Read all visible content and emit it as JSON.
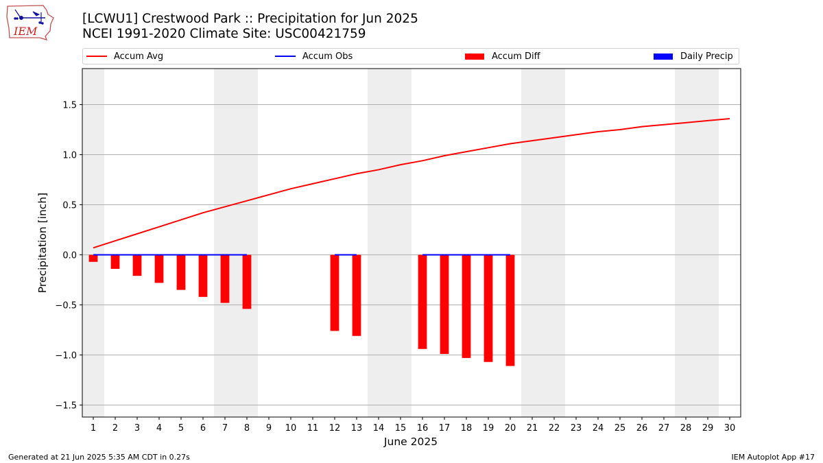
{
  "title_line1": "[LCWU1] Crestwood Park :: Precipitation for Jun 2025",
  "title_line2": "NCEI 1991-2020 Climate Site: USC00421759",
  "logo_text": "IEM",
  "footer_left": "Generated at 21 Jun 2025 5:35 AM CDT in 0.27s",
  "footer_right": "IEM Autoplot App #17",
  "colors": {
    "accum_avg": "#ff0000",
    "accum_obs": "#0000ff",
    "accum_diff": "#ff0000",
    "daily_precip": "#0000ff",
    "weekend_shade": "#eeeeee",
    "grid": "#b0b0b0"
  },
  "legend": [
    {
      "label": "Accum Avg",
      "kind": "line",
      "color": "#ff0000"
    },
    {
      "label": "Accum Obs",
      "kind": "line",
      "color": "#0000ff"
    },
    {
      "label": "Accum Diff",
      "kind": "patch",
      "color": "#ff0000"
    },
    {
      "label": "Daily Precip",
      "kind": "patch",
      "color": "#0000ff"
    }
  ],
  "chart_data": {
    "type": "bar",
    "xlabel": "June 2025",
    "ylabel": "Precipitation [inch]",
    "xlim": [
      0.5,
      30.5
    ],
    "ylim": [
      -1.62,
      1.86
    ],
    "yticks": [
      -1.5,
      -1.0,
      -0.5,
      0.0,
      0.5,
      1.0,
      1.5
    ],
    "ytick_labels": [
      "−1.5",
      "−1.0",
      "−0.5",
      "0.0",
      "0.5",
      "1.0",
      "1.5"
    ],
    "xticks": [
      1,
      2,
      3,
      4,
      5,
      6,
      7,
      8,
      9,
      10,
      11,
      12,
      13,
      14,
      15,
      16,
      17,
      18,
      19,
      20,
      21,
      22,
      23,
      24,
      25,
      26,
      27,
      28,
      29,
      30
    ],
    "grid": "horizontal",
    "weekend_days": [
      1,
      7,
      8,
      14,
      15,
      21,
      22,
      28,
      29
    ],
    "series": [
      {
        "name": "Accum Avg",
        "type": "line",
        "x": [
          1,
          2,
          3,
          4,
          5,
          6,
          7,
          8,
          9,
          10,
          11,
          12,
          13,
          14,
          15,
          16,
          17,
          18,
          19,
          20,
          21,
          22,
          23,
          24,
          25,
          26,
          27,
          28,
          29,
          30
        ],
        "values": [
          0.07,
          0.14,
          0.21,
          0.28,
          0.35,
          0.42,
          0.48,
          0.54,
          0.6,
          0.66,
          0.71,
          0.76,
          0.81,
          0.85,
          0.9,
          0.94,
          0.99,
          1.03,
          1.07,
          1.11,
          1.14,
          1.17,
          1.2,
          1.23,
          1.25,
          1.28,
          1.3,
          1.32,
          1.34,
          1.36
        ]
      },
      {
        "name": "Accum Obs",
        "type": "line",
        "x": [
          1,
          2,
          3,
          4,
          5,
          6,
          7,
          8,
          9,
          10,
          11,
          12,
          13,
          14,
          15,
          16,
          17,
          18,
          19,
          20
        ],
        "values": [
          0,
          0,
          0,
          0,
          0,
          0,
          0,
          0,
          null,
          null,
          null,
          0,
          0,
          null,
          null,
          0,
          0,
          0,
          0,
          0
        ]
      },
      {
        "name": "Accum Diff",
        "type": "bar",
        "x": [
          1,
          2,
          3,
          4,
          5,
          6,
          7,
          8,
          12,
          13,
          16,
          17,
          18,
          19,
          20
        ],
        "values": [
          -0.07,
          -0.14,
          -0.21,
          -0.28,
          -0.35,
          -0.42,
          -0.48,
          -0.54,
          -0.76,
          -0.81,
          -0.94,
          -0.99,
          -1.03,
          -1.07,
          -1.11
        ]
      },
      {
        "name": "Daily Precip",
        "type": "bar",
        "x": [],
        "values": []
      }
    ]
  }
}
